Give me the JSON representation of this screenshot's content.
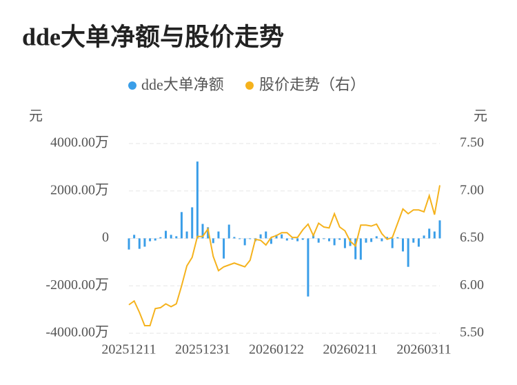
{
  "chart_data": {
    "type": "bar-line",
    "title": "dde大单净额与股价走势",
    "y_unit_label": "元",
    "y2_unit_label": "元",
    "categories": [
      "20251211",
      null,
      null,
      null,
      null,
      null,
      null,
      null,
      null,
      null,
      null,
      null,
      null,
      null,
      "20251231",
      null,
      null,
      null,
      null,
      null,
      null,
      null,
      null,
      null,
      null,
      null,
      null,
      null,
      "20260122",
      null,
      null,
      null,
      null,
      null,
      null,
      null,
      null,
      null,
      null,
      null,
      null,
      null,
      "20260211",
      null,
      null,
      null,
      null,
      null,
      null,
      null,
      null,
      null,
      null,
      null,
      null,
      null,
      "20260311",
      null,
      null,
      null
    ],
    "series": [
      {
        "name": "dde大单净额",
        "type": "bar",
        "color": "#3a9ee8",
        "values": [
          -4700000,
          1500000,
          -4400000,
          -3500000,
          -1200000,
          -900000,
          500000,
          3200000,
          1500000,
          900000,
          11100000,
          2900000,
          13100000,
          32400000,
          6100000,
          4700000,
          -2000000,
          2900000,
          -8500000,
          5800000,
          600000,
          -300000,
          -2900000,
          -300000,
          -1200000,
          1700000,
          2900000,
          -2300000,
          1500000,
          1700000,
          -900000,
          -500000,
          -1200000,
          -600000,
          -24500000,
          1800000,
          -1800000,
          -300000,
          -1200000,
          -2900000,
          -600000,
          -4100000,
          -3200000,
          -8800000,
          -9000000,
          -1800000,
          -1500000,
          900000,
          -1200000,
          600000,
          -4100000,
          500000,
          -5500000,
          -12000000,
          -1800000,
          -3500000,
          1200000,
          4100000,
          2900000,
          7600000
        ]
      },
      {
        "name": "股价走势（右）",
        "type": "line",
        "axis": "y2",
        "color": "#f5b21c",
        "values": [
          5.8,
          5.84,
          5.72,
          5.58,
          5.58,
          5.76,
          5.77,
          5.81,
          5.78,
          5.81,
          6.0,
          6.21,
          6.3,
          6.52,
          6.52,
          6.6,
          6.31,
          6.16,
          6.2,
          6.22,
          6.24,
          6.22,
          6.2,
          6.27,
          6.49,
          6.48,
          6.43,
          6.51,
          6.53,
          6.56,
          6.56,
          6.51,
          6.51,
          6.59,
          6.65,
          6.53,
          6.66,
          6.62,
          6.61,
          6.76,
          6.62,
          6.58,
          6.47,
          6.42,
          6.64,
          6.64,
          6.63,
          6.65,
          6.55,
          6.49,
          6.51,
          6.66,
          6.81,
          6.76,
          6.8,
          6.8,
          6.78,
          6.95,
          6.75,
          7.06
        ]
      }
    ],
    "ylim": [
      -40000000,
      40000000
    ],
    "yticks": [
      {
        "value": -40000000,
        "label": "-4000.00万"
      },
      {
        "value": -20000000,
        "label": "-2000.00万"
      },
      0,
      {
        "value": 20000000,
        "label": "2000.00万"
      },
      {
        "value": 40000000,
        "label": "4000.00万"
      }
    ],
    "y2lim": [
      5.5,
      7.5
    ],
    "y2ticks": [
      {
        "value": 5.5,
        "label": "5.50"
      },
      {
        "value": 6,
        "label": "6.00"
      },
      {
        "value": 6.5,
        "label": "6.50"
      },
      {
        "value": 7,
        "label": "7.00"
      },
      {
        "value": 7.5,
        "label": "7.50"
      }
    ],
    "grid": true
  }
}
